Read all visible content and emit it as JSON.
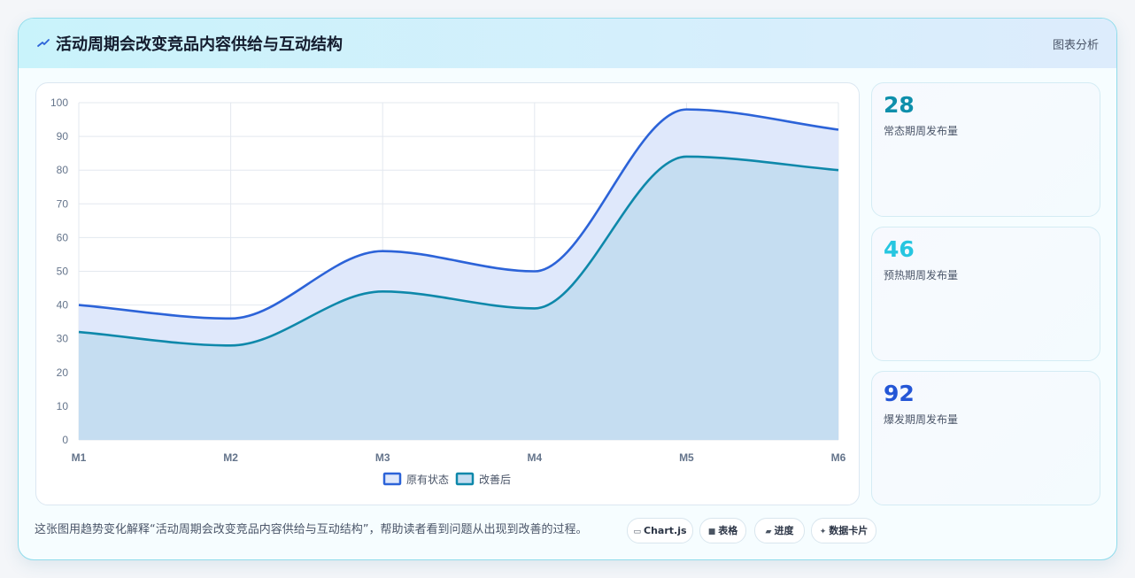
{
  "header": {
    "title": "活动周期会改变竞品内容供给与互动结构",
    "action_label": "图表分析",
    "icon": "chart-line-icon"
  },
  "chart_data": {
    "type": "area",
    "categories": [
      "M1",
      "M2",
      "M3",
      "M4",
      "M5",
      "M6"
    ],
    "ylim": [
      0,
      100
    ],
    "yticks": [
      0,
      10,
      20,
      30,
      40,
      50,
      60,
      70,
      80,
      90,
      100
    ],
    "grid": true,
    "legend_position": "bottom",
    "series": [
      {
        "name": "原有状态",
        "values": [
          40,
          36,
          56,
          50,
          98,
          92
        ],
        "color": "#2c63d8",
        "fill": "#dfe8fb"
      },
      {
        "name": "改善后",
        "values": [
          32,
          28,
          44,
          39,
          84,
          80
        ],
        "color": "#0e88aa",
        "fill": "#c5ddf1"
      }
    ]
  },
  "stats": [
    {
      "value": "28",
      "label": "常态期周发布量",
      "color": "#0e8fab"
    },
    {
      "value": "46",
      "label": "预热期周发布量",
      "color": "#26c6e0"
    },
    {
      "value": "92",
      "label": "爆发期周发布量",
      "color": "#2456d6"
    }
  ],
  "footer": {
    "description": "这张图用趋势变化解释“活动周期会改变竞品内容供给与互动结构”，帮助读者看到问题从出现到改善的过程。",
    "chips": [
      {
        "label": "Chart.js",
        "icon": "chart-icon",
        "glyph": "▭"
      },
      {
        "label": "表格",
        "icon": "table-icon",
        "glyph": "■"
      },
      {
        "label": "进度",
        "icon": "progress-icon",
        "glyph": "▰"
      },
      {
        "label": "数据卡片",
        "icon": "sparkle-icon",
        "glyph": "✦"
      }
    ]
  }
}
